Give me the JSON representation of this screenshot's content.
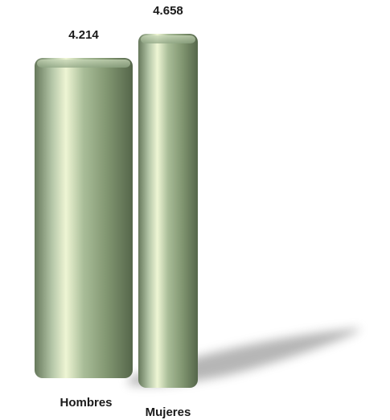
{
  "chart_data": {
    "type": "bar",
    "categories": [
      "Hombres",
      "Mujeres"
    ],
    "values": [
      4214,
      4658
    ],
    "data_labels": [
      "4.214",
      "4.658"
    ],
    "title": "",
    "xlabel": "",
    "ylabel": "",
    "ylim": [
      0,
      4658
    ],
    "grid": false,
    "legend": "none",
    "style": "3d-cylinder",
    "bar_color": "#8fa584",
    "shadow_color": "#7a7a7a"
  }
}
